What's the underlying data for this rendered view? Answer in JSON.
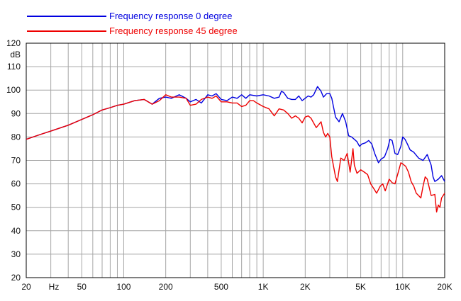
{
  "chart_data": {
    "type": "line",
    "title": "",
    "xlabel": "Hz",
    "ylabel": "dB",
    "x_scale": "log",
    "xlim": [
      20,
      20000
    ],
    "ylim": [
      20,
      120
    ],
    "grid": true,
    "legend_position": "top-left",
    "x_ticks": [
      {
        "value": 20,
        "label": "20"
      },
      {
        "value": 50,
        "label": "50"
      },
      {
        "value": 100,
        "label": "100"
      },
      {
        "value": 200,
        "label": "200"
      },
      {
        "value": 500,
        "label": "500"
      },
      {
        "value": 1000,
        "label": "1K"
      },
      {
        "value": 2000,
        "label": "2K"
      },
      {
        "value": 5000,
        "label": "5K"
      },
      {
        "value": 10000,
        "label": "10K"
      },
      {
        "value": 20000,
        "label": "20K"
      }
    ],
    "y_ticks": [
      20,
      30,
      40,
      50,
      60,
      70,
      80,
      90,
      100,
      110,
      120
    ],
    "series": [
      {
        "name": "Frequency response 0 degree",
        "color": "#0000e0",
        "points": [
          [
            20,
            79
          ],
          [
            25,
            81
          ],
          [
            30,
            82.5
          ],
          [
            40,
            85
          ],
          [
            50,
            87.5
          ],
          [
            60,
            89.5
          ],
          [
            70,
            91.5
          ],
          [
            80,
            92.5
          ],
          [
            90,
            93.5
          ],
          [
            100,
            94
          ],
          [
            120,
            95.5
          ],
          [
            140,
            96
          ],
          [
            160,
            94
          ],
          [
            180,
            96.5
          ],
          [
            200,
            97
          ],
          [
            220,
            96.5
          ],
          [
            250,
            98
          ],
          [
            280,
            96.5
          ],
          [
            300,
            95
          ],
          [
            330,
            96
          ],
          [
            360,
            94.5
          ],
          [
            400,
            98
          ],
          [
            430,
            97.5
          ],
          [
            460,
            98.5
          ],
          [
            500,
            96
          ],
          [
            550,
            95.5
          ],
          [
            600,
            97
          ],
          [
            650,
            96.5
          ],
          [
            700,
            98
          ],
          [
            750,
            96.5
          ],
          [
            800,
            98
          ],
          [
            900,
            97.5
          ],
          [
            1000,
            98
          ],
          [
            1100,
            97.5
          ],
          [
            1200,
            96.5
          ],
          [
            1300,
            97
          ],
          [
            1350,
            99.5
          ],
          [
            1400,
            99
          ],
          [
            1500,
            96.5
          ],
          [
            1600,
            96
          ],
          [
            1700,
            96
          ],
          [
            1800,
            97.5
          ],
          [
            1900,
            95.5
          ],
          [
            2000,
            96.5
          ],
          [
            2100,
            97.5
          ],
          [
            2200,
            97
          ],
          [
            2300,
            98
          ],
          [
            2450,
            101.5
          ],
          [
            2600,
            99.5
          ],
          [
            2700,
            97
          ],
          [
            2850,
            98.5
          ],
          [
            3000,
            98.5
          ],
          [
            3100,
            96.5
          ],
          [
            3300,
            88.5
          ],
          [
            3500,
            86.5
          ],
          [
            3700,
            90
          ],
          [
            3900,
            86.5
          ],
          [
            4100,
            80.5
          ],
          [
            4300,
            80
          ],
          [
            4500,
            79
          ],
          [
            4700,
            78
          ],
          [
            4900,
            76
          ],
          [
            5100,
            77
          ],
          [
            5400,
            77.5
          ],
          [
            5700,
            78.5
          ],
          [
            6000,
            77
          ],
          [
            6300,
            73
          ],
          [
            6700,
            69
          ],
          [
            7000,
            70.5
          ],
          [
            7400,
            71.5
          ],
          [
            7800,
            75
          ],
          [
            8100,
            79
          ],
          [
            8400,
            78.5
          ],
          [
            8800,
            73
          ],
          [
            9200,
            72.5
          ],
          [
            9700,
            76
          ],
          [
            10000,
            80
          ],
          [
            10400,
            79
          ],
          [
            10800,
            77
          ],
          [
            11300,
            74.5
          ],
          [
            12000,
            73.5
          ],
          [
            13000,
            71
          ],
          [
            14000,
            70
          ],
          [
            15000,
            72.5
          ],
          [
            16000,
            68
          ],
          [
            16500,
            63
          ],
          [
            17000,
            61
          ],
          [
            18000,
            62
          ],
          [
            19000,
            63.5
          ],
          [
            20000,
            61
          ]
        ]
      },
      {
        "name": "Frequency response 45 degree",
        "color": "#ee0000",
        "points": [
          [
            20,
            79
          ],
          [
            25,
            81
          ],
          [
            30,
            82.5
          ],
          [
            40,
            85
          ],
          [
            50,
            87.5
          ],
          [
            60,
            89.5
          ],
          [
            70,
            91.5
          ],
          [
            80,
            92.5
          ],
          [
            90,
            93.5
          ],
          [
            100,
            94
          ],
          [
            120,
            95.5
          ],
          [
            140,
            96
          ],
          [
            160,
            94
          ],
          [
            180,
            95.5
          ],
          [
            200,
            98
          ],
          [
            220,
            97
          ],
          [
            250,
            97
          ],
          [
            280,
            96.5
          ],
          [
            300,
            93.5
          ],
          [
            330,
            94
          ],
          [
            360,
            96
          ],
          [
            400,
            97
          ],
          [
            430,
            96.5
          ],
          [
            460,
            97.5
          ],
          [
            500,
            95
          ],
          [
            550,
            95
          ],
          [
            600,
            94.5
          ],
          [
            650,
            94.5
          ],
          [
            700,
            93
          ],
          [
            750,
            93.5
          ],
          [
            800,
            95.5
          ],
          [
            850,
            95.5
          ],
          [
            900,
            94.5
          ],
          [
            1000,
            93
          ],
          [
            1100,
            92
          ],
          [
            1200,
            89
          ],
          [
            1300,
            92
          ],
          [
            1400,
            91.5
          ],
          [
            1500,
            90
          ],
          [
            1600,
            88
          ],
          [
            1700,
            89
          ],
          [
            1800,
            88
          ],
          [
            1900,
            86
          ],
          [
            2000,
            88.5
          ],
          [
            2100,
            89
          ],
          [
            2200,
            88
          ],
          [
            2400,
            84
          ],
          [
            2600,
            86.5
          ],
          [
            2700,
            82
          ],
          [
            2800,
            80
          ],
          [
            2900,
            81.5
          ],
          [
            3000,
            80
          ],
          [
            3100,
            71.5
          ],
          [
            3300,
            63
          ],
          [
            3400,
            61
          ],
          [
            3600,
            71
          ],
          [
            3800,
            70
          ],
          [
            4000,
            73
          ],
          [
            4200,
            65
          ],
          [
            4400,
            75
          ],
          [
            4500,
            68
          ],
          [
            4700,
            64.5
          ],
          [
            5000,
            66
          ],
          [
            5300,
            65
          ],
          [
            5600,
            64
          ],
          [
            5900,
            60
          ],
          [
            6200,
            58
          ],
          [
            6500,
            56
          ],
          [
            6900,
            59
          ],
          [
            7200,
            60
          ],
          [
            7500,
            57
          ],
          [
            8000,
            62
          ],
          [
            8400,
            60.5
          ],
          [
            8800,
            60
          ],
          [
            9300,
            65
          ],
          [
            9700,
            69
          ],
          [
            10000,
            68.5
          ],
          [
            10500,
            67.5
          ],
          [
            11000,
            65
          ],
          [
            11500,
            61
          ],
          [
            12000,
            59
          ],
          [
            12500,
            56
          ],
          [
            13000,
            55
          ],
          [
            13500,
            54
          ],
          [
            14000,
            59
          ],
          [
            14500,
            63
          ],
          [
            15000,
            62
          ],
          [
            16000,
            55
          ],
          [
            17000,
            55.5
          ],
          [
            17500,
            48
          ],
          [
            18000,
            51
          ],
          [
            18500,
            50
          ],
          [
            19000,
            54
          ],
          [
            19500,
            55
          ],
          [
            20000,
            56
          ]
        ]
      }
    ]
  }
}
